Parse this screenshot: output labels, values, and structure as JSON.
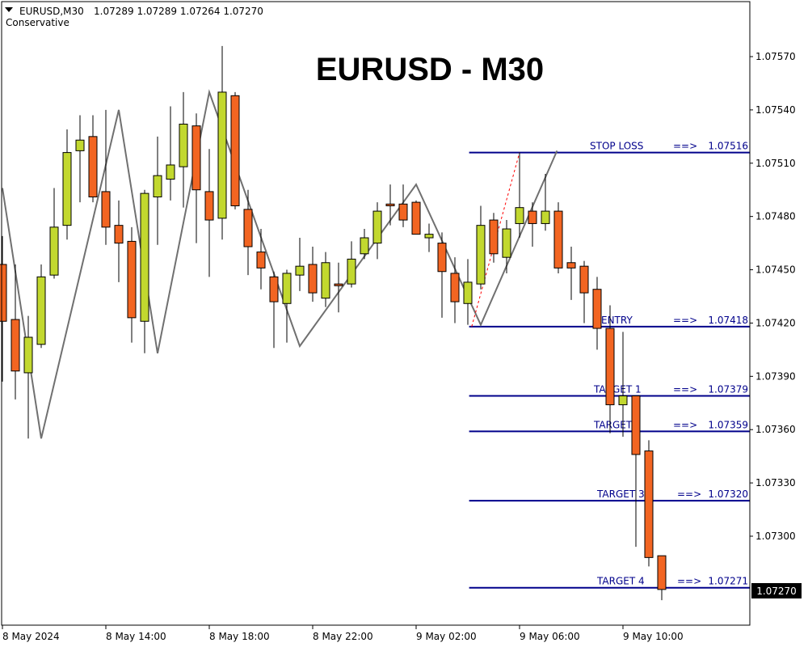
{
  "header": {
    "symbol": "EURUSD,M30",
    "ohlc": "1.07289 1.07289 1.07264 1.07270",
    "strategy": "Conservative",
    "menu_icon": "triangle-down-icon"
  },
  "title": "EURUSD - M30",
  "current_price": "1.07270",
  "colors": {
    "bull": "#C2D82F",
    "bear": "#F26522",
    "levels": "#00008B",
    "zigzag": "#707070",
    "projection": "#FF0000"
  },
  "chart_data": {
    "type": "candlestick",
    "title": "EURUSD - M30",
    "timeframe": "M30",
    "ylim": [
      1.07238,
      1.076
    ],
    "y_ticks": [
      "1.07570",
      "1.07540",
      "1.07510",
      "1.07480",
      "1.07450",
      "1.07420",
      "1.07390",
      "1.07360",
      "1.07330",
      "1.07300"
    ],
    "x_ticks": [
      {
        "index": 0,
        "label": "8 May 2024"
      },
      {
        "index": 8,
        "label": "8 May 14:00"
      },
      {
        "index": 16,
        "label": "8 May 18:00"
      },
      {
        "index": 24,
        "label": "8 May 22:00"
      },
      {
        "index": 32,
        "label": "9 May 02:00"
      },
      {
        "index": 40,
        "label": "9 May 06:00"
      },
      {
        "index": 48,
        "label": "9 May 10:00"
      }
    ],
    "candles": [
      [
        1.07453,
        1.07469,
        1.07387,
        1.07421
      ],
      [
        1.07422,
        1.07453,
        1.07377,
        1.07393
      ],
      [
        1.07392,
        1.07424,
        1.07355,
        1.07412
      ],
      [
        1.07408,
        1.07453,
        1.07406,
        1.07446
      ],
      [
        1.07447,
        1.07496,
        1.07445,
        1.07474
      ],
      [
        1.07475,
        1.07529,
        1.07467,
        1.07516
      ],
      [
        1.07517,
        1.07537,
        1.07488,
        1.07523
      ],
      [
        1.07525,
        1.07537,
        1.07488,
        1.07491
      ],
      [
        1.07494,
        1.0754,
        1.07464,
        1.07474
      ],
      [
        1.07475,
        1.07489,
        1.07443,
        1.07465
      ],
      [
        1.07466,
        1.07474,
        1.07409,
        1.07423
      ],
      [
        1.07421,
        1.07495,
        1.07403,
        1.07493
      ],
      [
        1.07491,
        1.07525,
        1.07464,
        1.07503
      ],
      [
        1.07501,
        1.07542,
        1.07489,
        1.07509
      ],
      [
        1.07508,
        1.0755,
        1.07485,
        1.07532
      ],
      [
        1.07531,
        1.07538,
        1.07465,
        1.07495
      ],
      [
        1.07494,
        1.07518,
        1.07446,
        1.07478
      ],
      [
        1.07479,
        1.07576,
        1.07467,
        1.0755
      ],
      [
        1.07548,
        1.0755,
        1.07484,
        1.07486
      ],
      [
        1.07484,
        1.07495,
        1.07447,
        1.07463
      ],
      [
        1.0746,
        1.07473,
        1.07439,
        1.07451
      ],
      [
        1.07446,
        1.07449,
        1.07406,
        1.07432
      ],
      [
        1.07431,
        1.0745,
        1.07409,
        1.07448
      ],
      [
        1.07447,
        1.07468,
        1.07438,
        1.07452
      ],
      [
        1.07453,
        1.07463,
        1.07432,
        1.07437
      ],
      [
        1.07434,
        1.0746,
        1.07429,
        1.07454
      ],
      [
        1.07442,
        1.07454,
        1.07426,
        1.07441
      ],
      [
        1.07442,
        1.07466,
        1.0744,
        1.07456
      ],
      [
        1.07459,
        1.07473,
        1.07456,
        1.07468
      ],
      [
        1.07465,
        1.07488,
        1.07456,
        1.07483
      ],
      [
        1.07487,
        1.07498,
        1.07475,
        1.07486
      ],
      [
        1.07487,
        1.07498,
        1.07474,
        1.07478
      ],
      [
        1.07488,
        1.07489,
        1.0747,
        1.0747
      ],
      [
        1.07468,
        1.07476,
        1.0746,
        1.0747
      ],
      [
        1.07465,
        1.07471,
        1.07423,
        1.07449
      ],
      [
        1.07448,
        1.07457,
        1.0742,
        1.07432
      ],
      [
        1.07431,
        1.07456,
        1.07419,
        1.07443
      ],
      [
        1.07442,
        1.07486,
        1.07439,
        1.07475
      ],
      [
        1.07478,
        1.07482,
        1.07454,
        1.07459
      ],
      [
        1.07457,
        1.07478,
        1.07448,
        1.07473
      ],
      [
        1.07476,
        1.07516,
        1.07468,
        1.07485
      ],
      [
        1.07483,
        1.07488,
        1.07463,
        1.07476
      ],
      [
        1.07476,
        1.07504,
        1.07472,
        1.07483
      ],
      [
        1.07483,
        1.07488,
        1.07448,
        1.07451
      ],
      [
        1.07454,
        1.07463,
        1.07433,
        1.07451
      ],
      [
        1.07452,
        1.07455,
        1.0742,
        1.07437
      ],
      [
        1.07439,
        1.07446,
        1.07405,
        1.07417
      ],
      [
        1.07417,
        1.0743,
        1.07358,
        1.07374
      ],
      [
        1.07374,
        1.07415,
        1.07356,
        1.07379
      ],
      [
        1.07379,
        1.07379,
        1.07294,
        1.07346
      ],
      [
        1.07348,
        1.07354,
        1.07283,
        1.07288
      ],
      [
        1.07289,
        1.07289,
        1.07264,
        1.0727
      ]
    ],
    "zigzag": [
      [
        0,
        1.07496
      ],
      [
        3,
        1.07355
      ],
      [
        9,
        1.0754
      ],
      [
        12,
        1.07403
      ],
      [
        16,
        1.0755
      ],
      [
        23,
        1.07407
      ],
      [
        32,
        1.07498
      ],
      [
        37,
        1.07419
      ],
      [
        42.9,
        1.07517
      ]
    ],
    "projection": [
      [
        36.3,
        1.07418
      ],
      [
        40,
        1.07516
      ]
    ],
    "levels": [
      {
        "label": "STOP LOSS",
        "arrow": "==>",
        "value": "1.07516",
        "price": 1.07516
      },
      {
        "label": "ENTRY",
        "arrow": "==>",
        "value": "1.07418",
        "price": 1.07418
      },
      {
        "label": "TARGET 1",
        "arrow": "==>",
        "value": "1.07379",
        "price": 1.07379
      },
      {
        "label": "TARGET 2",
        "arrow": "==>",
        "value": "1.07359",
        "price": 1.07359
      },
      {
        "label": "TARGET 3",
        "arrow": "==>",
        "value": "1.07320",
        "price": 1.0732
      },
      {
        "label": "TARGET 4",
        "arrow": "==>",
        "value": "1.07271",
        "price": 1.07271
      }
    ],
    "levels_start_index": 36.1
  }
}
